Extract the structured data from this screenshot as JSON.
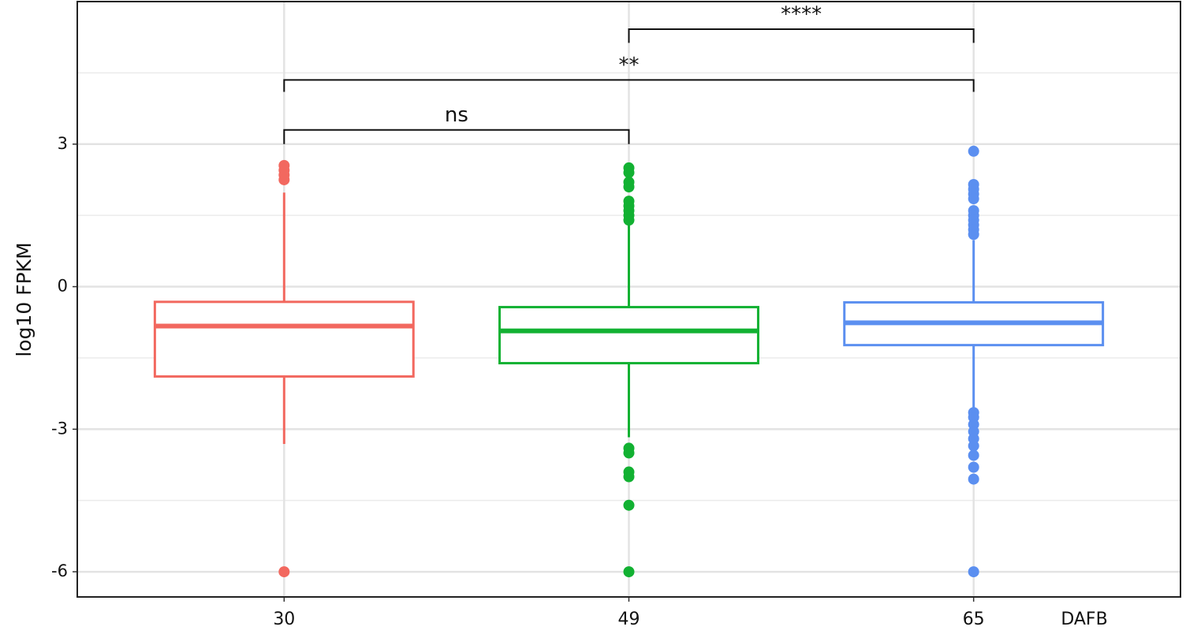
{
  "chart_data": {
    "type": "box",
    "y_label": "log10 FPKM",
    "x_label": "DAFB",
    "categories": [
      "30",
      "49",
      "65"
    ],
    "colors": [
      "#f2685f",
      "#12b132",
      "#5b8ff0"
    ],
    "boxes": [
      {
        "q1": -1.89,
        "median": -0.83,
        "q3": -0.32,
        "whisker_low": -3.31,
        "whisker_high": 1.98,
        "outliers": [
          2.55,
          2.45,
          2.35,
          2.25,
          -6.0
        ]
      },
      {
        "q1": -1.61,
        "median": -0.93,
        "q3": -0.43,
        "whisker_low": -3.17,
        "whisker_high": 1.31,
        "outliers": [
          2.5,
          2.4,
          2.2,
          2.1,
          1.8,
          1.7,
          1.6,
          1.5,
          1.4,
          -3.4,
          -3.5,
          -3.9,
          -4.0,
          -4.6,
          -6.0
        ]
      },
      {
        "q1": -1.23,
        "median": -0.76,
        "q3": -0.33,
        "whisker_low": -2.54,
        "whisker_high": 0.98,
        "outliers": [
          2.85,
          2.15,
          2.05,
          1.95,
          1.85,
          1.6,
          1.5,
          1.4,
          1.3,
          1.2,
          1.1,
          -2.65,
          -2.75,
          -2.9,
          -3.05,
          -3.2,
          -3.35,
          -3.55,
          -3.8,
          -4.05,
          -6.0
        ]
      }
    ],
    "comparisons": [
      {
        "groups": [
          "30",
          "49"
        ],
        "label": "ns",
        "y": 3.3,
        "tip": 3.0
      },
      {
        "groups": [
          "30",
          "65"
        ],
        "label": "**",
        "y": 4.35,
        "tip": 4.1
      },
      {
        "groups": [
          "49",
          "65"
        ],
        "label": "****",
        "y": 5.42,
        "tip": 5.13
      }
    ],
    "ylim": [
      -6.53,
      6.0
    ],
    "yticks": [
      -6,
      -3,
      0,
      3
    ],
    "minor_yticks": [
      -4.5,
      -1.5,
      1.5,
      4.5
    ],
    "grid": true
  }
}
